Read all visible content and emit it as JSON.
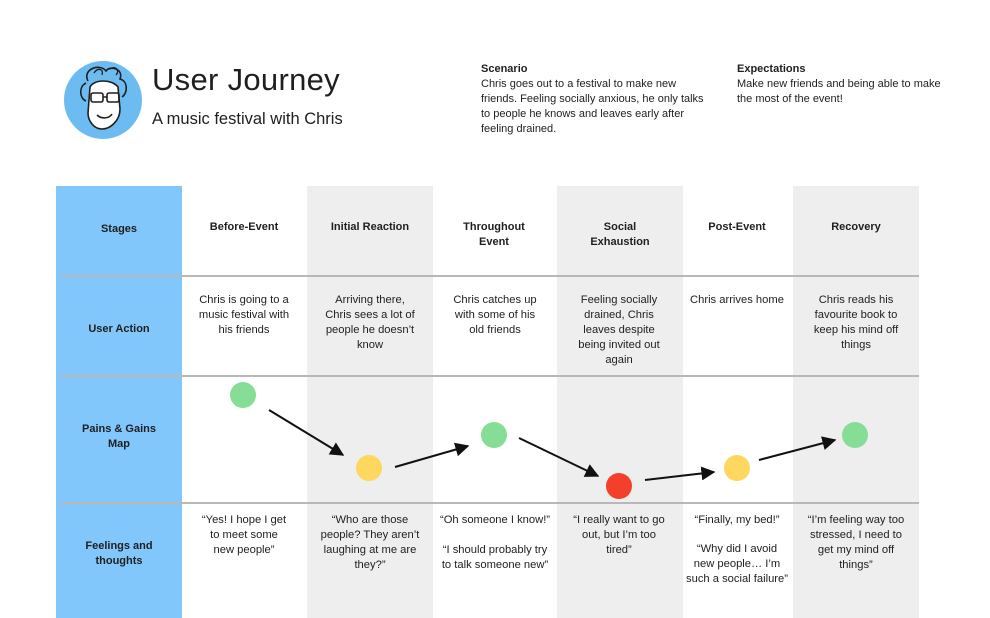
{
  "header": {
    "title": "User Journey",
    "subtitle": "A music festival with Chris",
    "scenario_heading": "Scenario",
    "scenario_text": "Chris goes out to a festival to make new friends. Feeling socially anxious, he only talks to people he knows and leaves early after feeling drained.",
    "expectations_heading": "Expectations",
    "expectations_text": "Make new friends and being able to make the most of the event!"
  },
  "colors": {
    "stage_column": "#81c7fb",
    "shaded_column": "#eeeeee",
    "avatar_bg": "#6cbcf2",
    "gain": "#86dd95",
    "neutral": "#fdd75e",
    "pain": "#f2402a"
  },
  "row_labels": {
    "stages": "Stages",
    "user_action": "User Action",
    "pains_gains": "Pains & Gains Map",
    "feelings": "Feelings and thoughts"
  },
  "stages": [
    {
      "name": "Before-Event",
      "action": "Chris is going to a music festival with his friends",
      "mood": "gain",
      "feelings": [
        "“Yes! I hope I get to meet some new people”"
      ]
    },
    {
      "name": "Initial Reaction",
      "action": "Arriving there, Chris sees a lot of people he doesn’t know",
      "mood": "neutral",
      "feelings": [
        "“Who are those people? They aren’t laughing at me are they?”"
      ]
    },
    {
      "name": "Throughout Event",
      "action": "Chris catches up with some of his old friends",
      "mood": "gain",
      "feelings": [
        "“Oh someone I know!”",
        "“I should probably try to talk someone new”"
      ]
    },
    {
      "name": "Social Exhaustion",
      "action": "Feeling socially drained, Chris leaves despite being invited out again",
      "mood": "pain",
      "feelings": [
        "“I really want to go out, but I’m too tired”"
      ]
    },
    {
      "name": "Post-Event",
      "action": "Chris arrives home",
      "mood": "neutral",
      "feelings": [
        "“Finally, my bed!”",
        "“Why did I avoid new people… I’m such a social failure”"
      ]
    },
    {
      "name": "Recovery",
      "action": "Chris reads his favourite book to keep his mind off things",
      "mood": "gain",
      "feelings": [
        "“I’m feeling way too stressed, I need to get my mind off things”"
      ]
    }
  ]
}
